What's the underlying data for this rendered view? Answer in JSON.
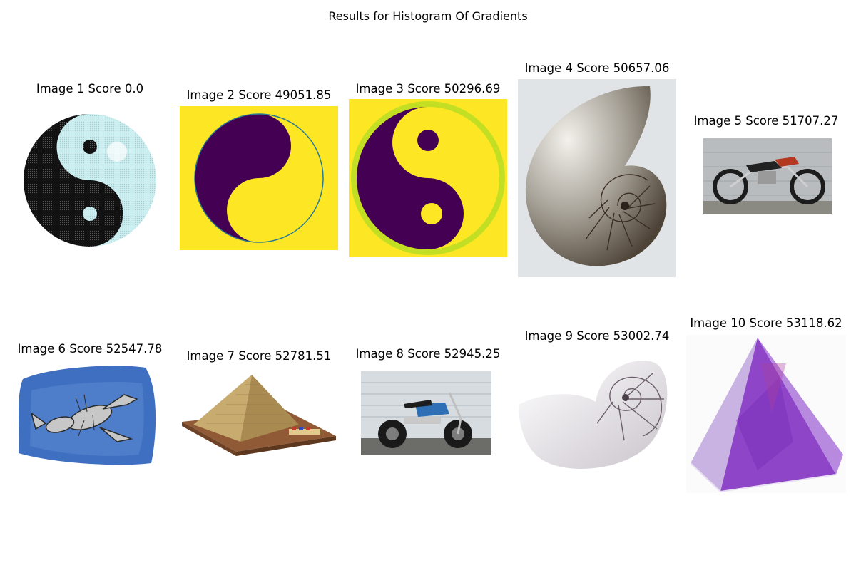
{
  "figure": {
    "title": "Results for Histogram Of Gradients"
  },
  "results": [
    {
      "label": "Image 1 Score 0.0",
      "image": "yin-yang-dotted-icon"
    },
    {
      "label": "Image 2 Score 49051.85",
      "image": "yin-yang-purple-yellow-icon"
    },
    {
      "label": "Image 3 Score 50296.69",
      "image": "yin-yang-ringed-icon"
    },
    {
      "label": "Image 4 Score 50657.06",
      "image": "nautilus-shell-icon"
    },
    {
      "label": "Image 5 Score 51707.27",
      "image": "dirt-bike-icon"
    },
    {
      "label": "Image 6 Score 52547.78",
      "image": "lobster-drawing-icon"
    },
    {
      "label": "Image 7 Score 52781.51",
      "image": "pyramid-model-icon"
    },
    {
      "label": "Image 8 Score 52945.25",
      "image": "mini-bike-icon"
    },
    {
      "label": "Image 9 Score 53002.74",
      "image": "nautilus-shell-white-icon"
    },
    {
      "label": "Image 10 Score 53118.62",
      "image": "amethyst-pyramid-icon"
    }
  ],
  "colors": {
    "yinyang_purple": "#440154",
    "yinyang_yellow": "#fde725",
    "yinyang_ring": "#c2df23",
    "amethyst": "#9b59d0"
  }
}
